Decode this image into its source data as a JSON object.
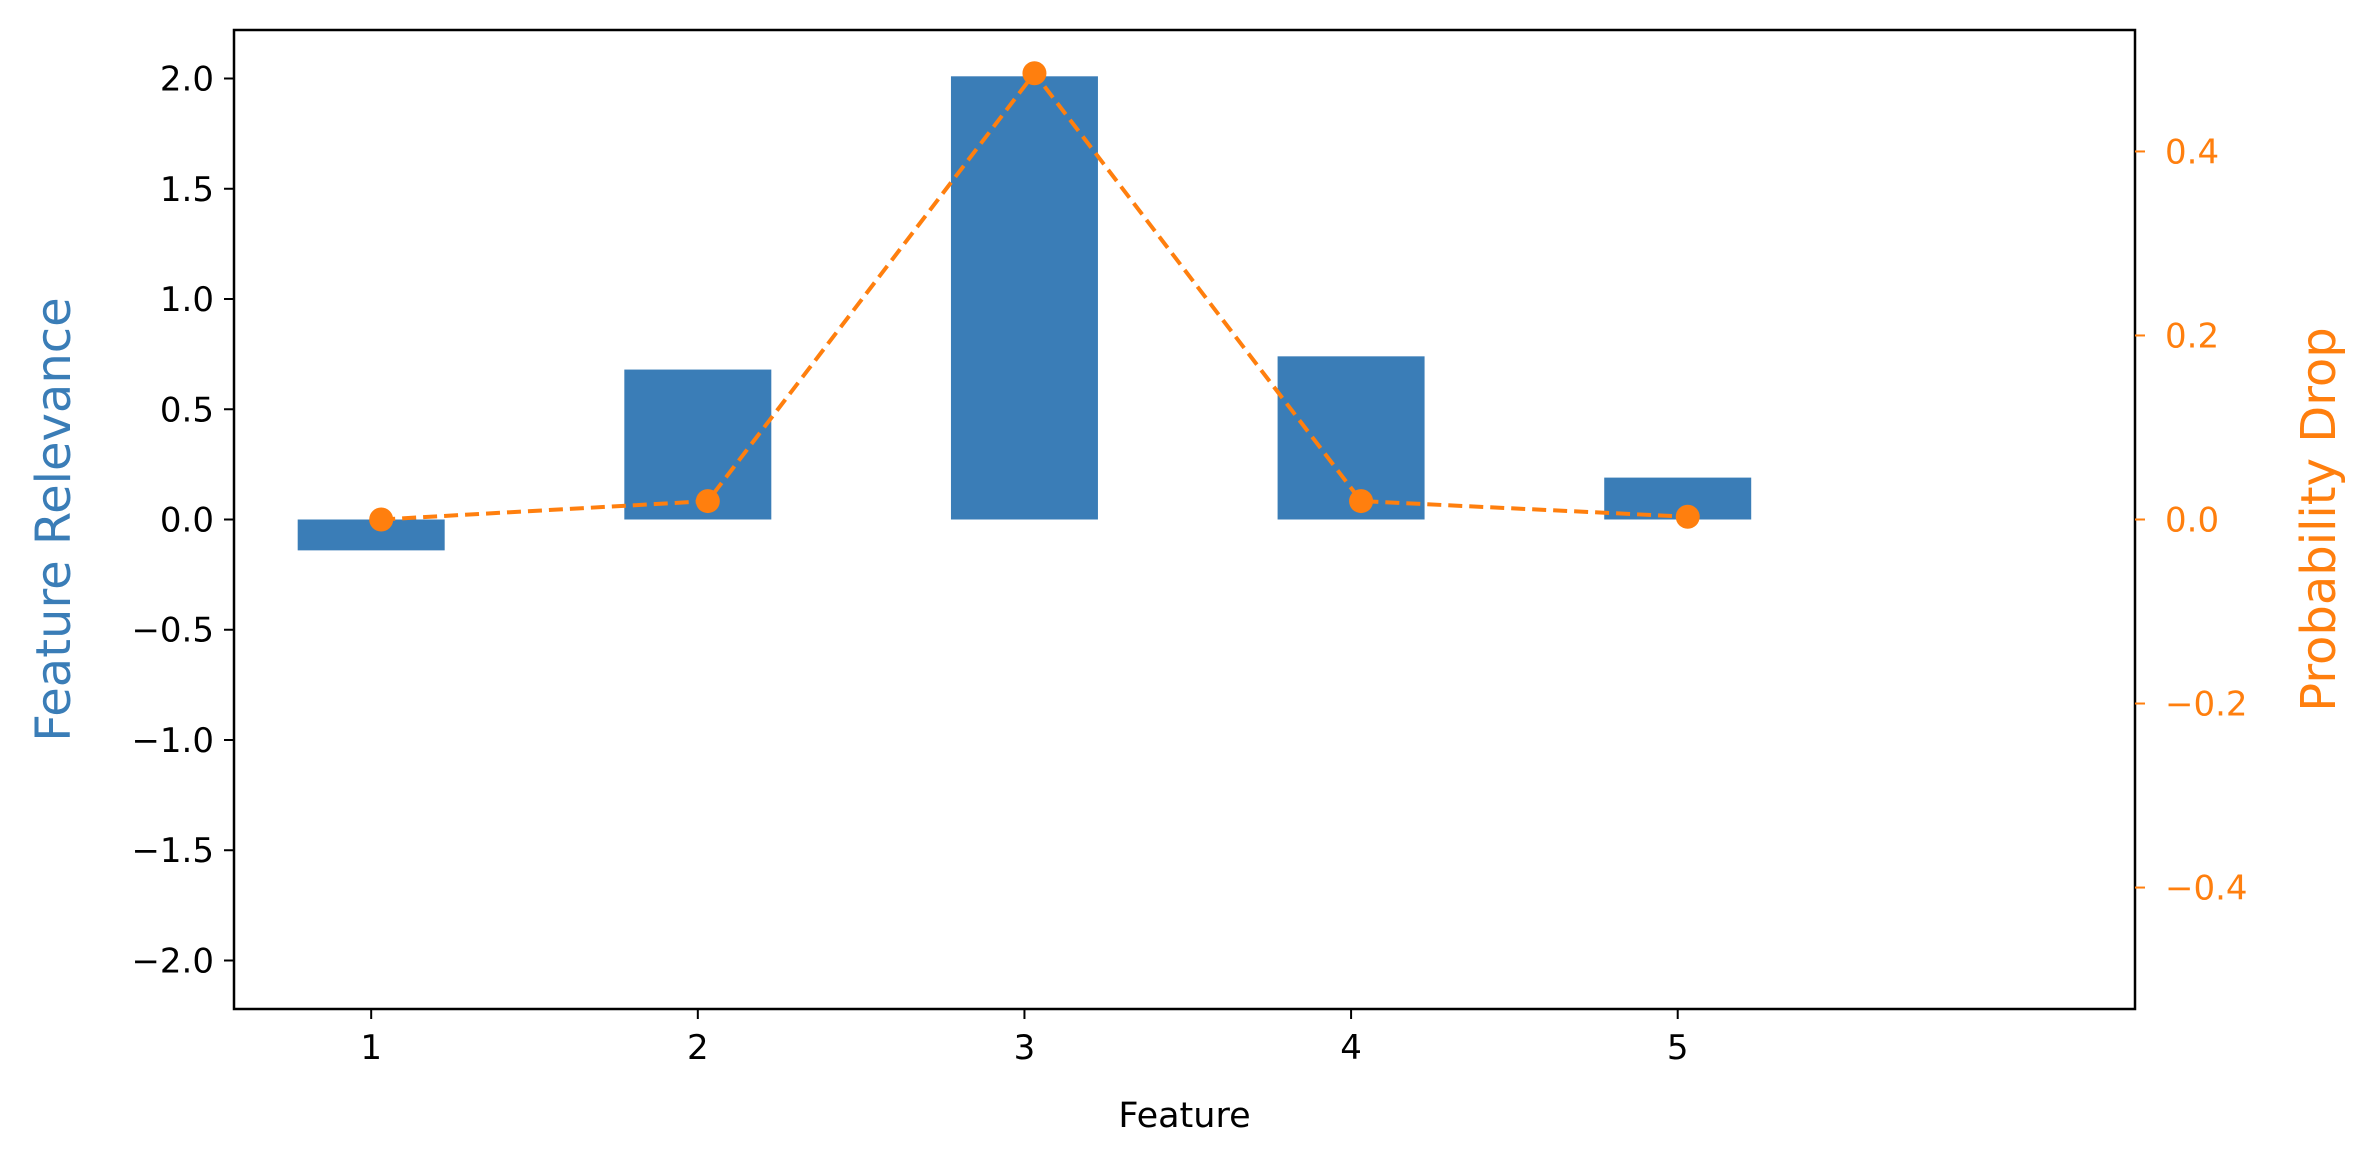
{
  "chart_data": {
    "type": "bar",
    "categories": [
      "1",
      "2",
      "3",
      "4",
      "5"
    ],
    "xlabel": "Feature",
    "title": "",
    "grid": false,
    "legend": "none",
    "left_axis": {
      "label": "Feature Relevance",
      "ylim": [
        -2.22,
        2.22
      ],
      "ticks": [
        -2.0,
        -1.5,
        -1.0,
        -0.5,
        0.0,
        0.5,
        1.0,
        1.5,
        2.0
      ],
      "tick_labels": [
        "−2.0",
        "−1.5",
        "−1.0",
        "−0.5",
        "0.0",
        "0.5",
        "1.0",
        "1.5",
        "2.0"
      ],
      "color": "#3a7db7"
    },
    "right_axis": {
      "label": "Probability Drop",
      "ylim": [
        -0.532,
        0.532
      ],
      "ticks": [
        -0.4,
        -0.2,
        0.0,
        0.2,
        0.4
      ],
      "tick_labels": [
        "−0.4",
        "−0.2",
        "0.0",
        "0.2",
        "0.4"
      ],
      "color": "#ff7f0e"
    },
    "series": [
      {
        "type": "bar",
        "axis": "left",
        "values": [
          -0.14,
          0.68,
          2.01,
          0.74,
          0.19
        ],
        "color": "#3a7db7"
      },
      {
        "type": "line",
        "axis": "right",
        "style": "dashed",
        "marker": "circle",
        "values": [
          0.0,
          0.02,
          0.485,
          0.02,
          0.003
        ],
        "color": "#ff7f0e"
      }
    ]
  }
}
